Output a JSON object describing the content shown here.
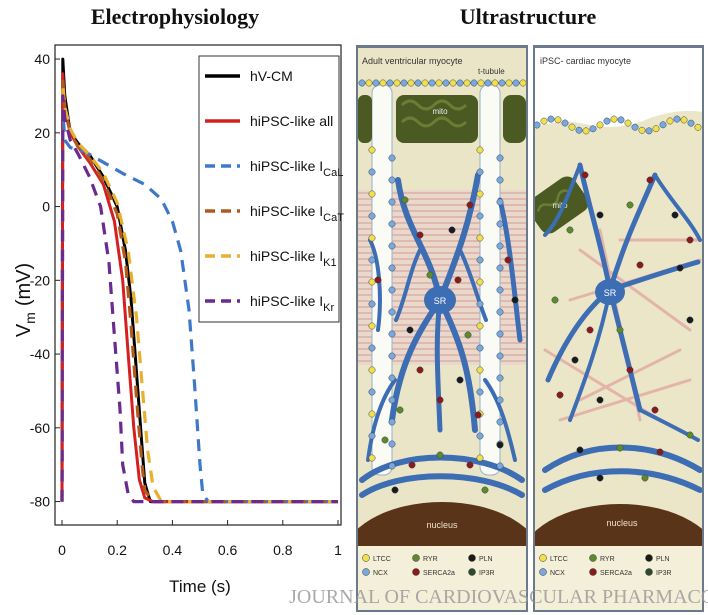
{
  "headers": {
    "left": "Electrophysiology",
    "right": "Ultrastructure"
  },
  "chart_data": {
    "type": "line",
    "xlabel": "Time (s)",
    "ylabel": "V",
    "ylabel_sub": "m",
    "ylabel_unit": "(mV)",
    "xlim": [
      0,
      1
    ],
    "ylim": [
      -85,
      43
    ],
    "x_ticks": [
      0,
      0.2,
      0.4,
      0.6,
      0.8,
      1
    ],
    "x_tick_labels": [
      "0",
      "0.2",
      "0.4",
      "0.6",
      "0.8",
      "1"
    ],
    "y_ticks": [
      40,
      20,
      0,
      -20,
      -40,
      -60,
      -80
    ],
    "y_tick_labels": [
      "40",
      "20",
      "0",
      "-20",
      "-40",
      "-60",
      "-80"
    ],
    "series": [
      {
        "name": "hV-CM",
        "sub": "",
        "color": "#000000",
        "dash": "solid",
        "points": [
          [
            0,
            -80
          ],
          [
            0.003,
            40
          ],
          [
            0.01,
            30
          ],
          [
            0.03,
            20
          ],
          [
            0.06,
            17
          ],
          [
            0.1,
            14
          ],
          [
            0.15,
            8
          ],
          [
            0.2,
            0
          ],
          [
            0.23,
            -12
          ],
          [
            0.25,
            -25
          ],
          [
            0.27,
            -45
          ],
          [
            0.29,
            -65
          ],
          [
            0.3,
            -75
          ],
          [
            0.32,
            -80
          ],
          [
            1,
            -80
          ]
        ]
      },
      {
        "name": "hiPSC-like all",
        "sub": "",
        "color": "#d42020",
        "dash": "solid",
        "points": [
          [
            0,
            -80
          ],
          [
            0.003,
            36
          ],
          [
            0.01,
            26
          ],
          [
            0.03,
            20
          ],
          [
            0.06,
            16
          ],
          [
            0.1,
            12
          ],
          [
            0.15,
            6
          ],
          [
            0.19,
            -4
          ],
          [
            0.22,
            -20
          ],
          [
            0.24,
            -40
          ],
          [
            0.26,
            -60
          ],
          [
            0.28,
            -74
          ],
          [
            0.3,
            -79
          ],
          [
            0.33,
            -80
          ],
          [
            1,
            -80
          ]
        ]
      },
      {
        "name": "hiPSC-like I",
        "sub": "CaL",
        "color": "#3f78c8",
        "dash": "dashed",
        "points": [
          [
            0,
            -80
          ],
          [
            0.003,
            26
          ],
          [
            0.01,
            18
          ],
          [
            0.03,
            16
          ],
          [
            0.08,
            15
          ],
          [
            0.15,
            12
          ],
          [
            0.22,
            9
          ],
          [
            0.3,
            6
          ],
          [
            0.36,
            2
          ],
          [
            0.4,
            -4
          ],
          [
            0.43,
            -12
          ],
          [
            0.46,
            -28
          ],
          [
            0.48,
            -48
          ],
          [
            0.5,
            -70
          ],
          [
            0.51,
            -78
          ],
          [
            0.53,
            -80
          ],
          [
            1,
            -80
          ]
        ]
      },
      {
        "name": "hiPSC-like I",
        "sub": "CaT",
        "color": "#b05a20",
        "dash": "dashed",
        "points": [
          [
            0,
            -80
          ],
          [
            0.003,
            34
          ],
          [
            0.01,
            27
          ],
          [
            0.03,
            20
          ],
          [
            0.06,
            16
          ],
          [
            0.1,
            13
          ],
          [
            0.15,
            7
          ],
          [
            0.2,
            -2
          ],
          [
            0.23,
            -15
          ],
          [
            0.25,
            -32
          ],
          [
            0.27,
            -52
          ],
          [
            0.29,
            -70
          ],
          [
            0.3,
            -77
          ],
          [
            0.33,
            -80
          ],
          [
            1,
            -80
          ]
        ]
      },
      {
        "name": "hiPSC-like I",
        "sub": "K1",
        "color": "#e8b030",
        "dash": "dashed",
        "points": [
          [
            0,
            -80
          ],
          [
            0.003,
            33
          ],
          [
            0.01,
            27
          ],
          [
            0.03,
            21
          ],
          [
            0.06,
            17
          ],
          [
            0.1,
            14
          ],
          [
            0.15,
            9
          ],
          [
            0.2,
            1
          ],
          [
            0.24,
            -12
          ],
          [
            0.27,
            -30
          ],
          [
            0.29,
            -48
          ],
          [
            0.31,
            -66
          ],
          [
            0.33,
            -76
          ],
          [
            0.36,
            -80
          ],
          [
            1,
            -80
          ]
        ]
      },
      {
        "name": "hiPSC-like I",
        "sub": "Kr",
        "color": "#6a2a90",
        "dash": "dashed",
        "points": [
          [
            0,
            -80
          ],
          [
            0.003,
            30
          ],
          [
            0.01,
            24
          ],
          [
            0.03,
            18
          ],
          [
            0.06,
            14
          ],
          [
            0.1,
            8
          ],
          [
            0.14,
            0
          ],
          [
            0.17,
            -15
          ],
          [
            0.19,
            -35
          ],
          [
            0.21,
            -55
          ],
          [
            0.22,
            -70
          ],
          [
            0.24,
            -78
          ],
          [
            0.26,
            -80
          ],
          [
            1,
            -80
          ]
        ]
      }
    ]
  },
  "panels": {
    "adult": {
      "title": "Adult ventricular myocyte",
      "t_tubule": "t-tubule",
      "mito": "mito",
      "sr": "SR",
      "nucleus": "nucleus",
      "legend": [
        "LTCC",
        "RYR",
        "PLN",
        "NCX",
        "SERCA2a",
        "IP3R"
      ]
    },
    "ipsc": {
      "title": "iPSC- cardiac myocyte",
      "mito": "mito",
      "sr": "SR",
      "nucleus": "nucleus",
      "legend": [
        "LTCC",
        "RYR",
        "PLN",
        "NCX",
        "SERCA2a",
        "IP3R"
      ]
    }
  },
  "legend_colors": {
    "LTCC": "#f2e04a",
    "NCX": "#7aa8dd",
    "RYR": "#5e8a2a",
    "SERCA2a": "#8b1a1a",
    "PLN": "#1a1a1a",
    "IP3R": "#2b4a30"
  },
  "watermark": "JOURNAL OF CARDIOVASCULAR PHARMACOLOGY"
}
